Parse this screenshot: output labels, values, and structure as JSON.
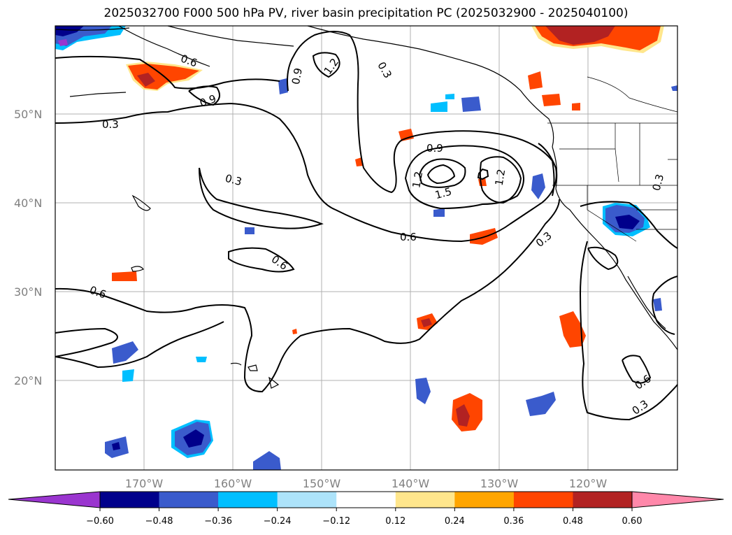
{
  "title": "2025032700 F000 500 hPa PV, river basin precipitation PC (2025032900 - 2025040100)",
  "lat_labels": [
    "50°N",
    "40°N",
    "30°N",
    "20°N"
  ],
  "lon_labels": [
    "170°W",
    "160°W",
    "150°W",
    "140°W",
    "130°W",
    "120°W"
  ],
  "contour_labels": {
    "a": "0.6",
    "b": "0.9",
    "c": "0.9",
    "d": "1.2",
    "e": "0.3",
    "f": "0.3",
    "g": "0.3",
    "h": "0.9",
    "i": "1.2",
    "j": "1.5",
    "k": "1.2",
    "l": "0.3",
    "m": "0.6",
    "n": "0.6",
    "o": "0.3",
    "p": "0.6",
    "q": "0.6",
    "r": "0.3"
  },
  "colorbar": {
    "ticks": [
      "−0.60",
      "−0.48",
      "−0.36",
      "−0.24",
      "−0.12",
      "0.12",
      "0.24",
      "0.36",
      "0.48",
      "0.60"
    ],
    "colors": [
      "#9a35cf",
      "#00008b",
      "#3a5bcc",
      "#00bfff",
      "#ade3fa",
      "#ffffff",
      "#ffe68c",
      "#ffa500",
      "#ff4500",
      "#b22222",
      "#ff88aa"
    ]
  },
  "colors": {
    "neg_strong": "#00008b",
    "neg_mid": "#3a5bcc",
    "neg_light": "#00bfff",
    "pos_light": "#ffe68c",
    "pos_mid": "#ff4500",
    "pos_strong": "#b22222",
    "purple": "#9a35cf"
  }
}
